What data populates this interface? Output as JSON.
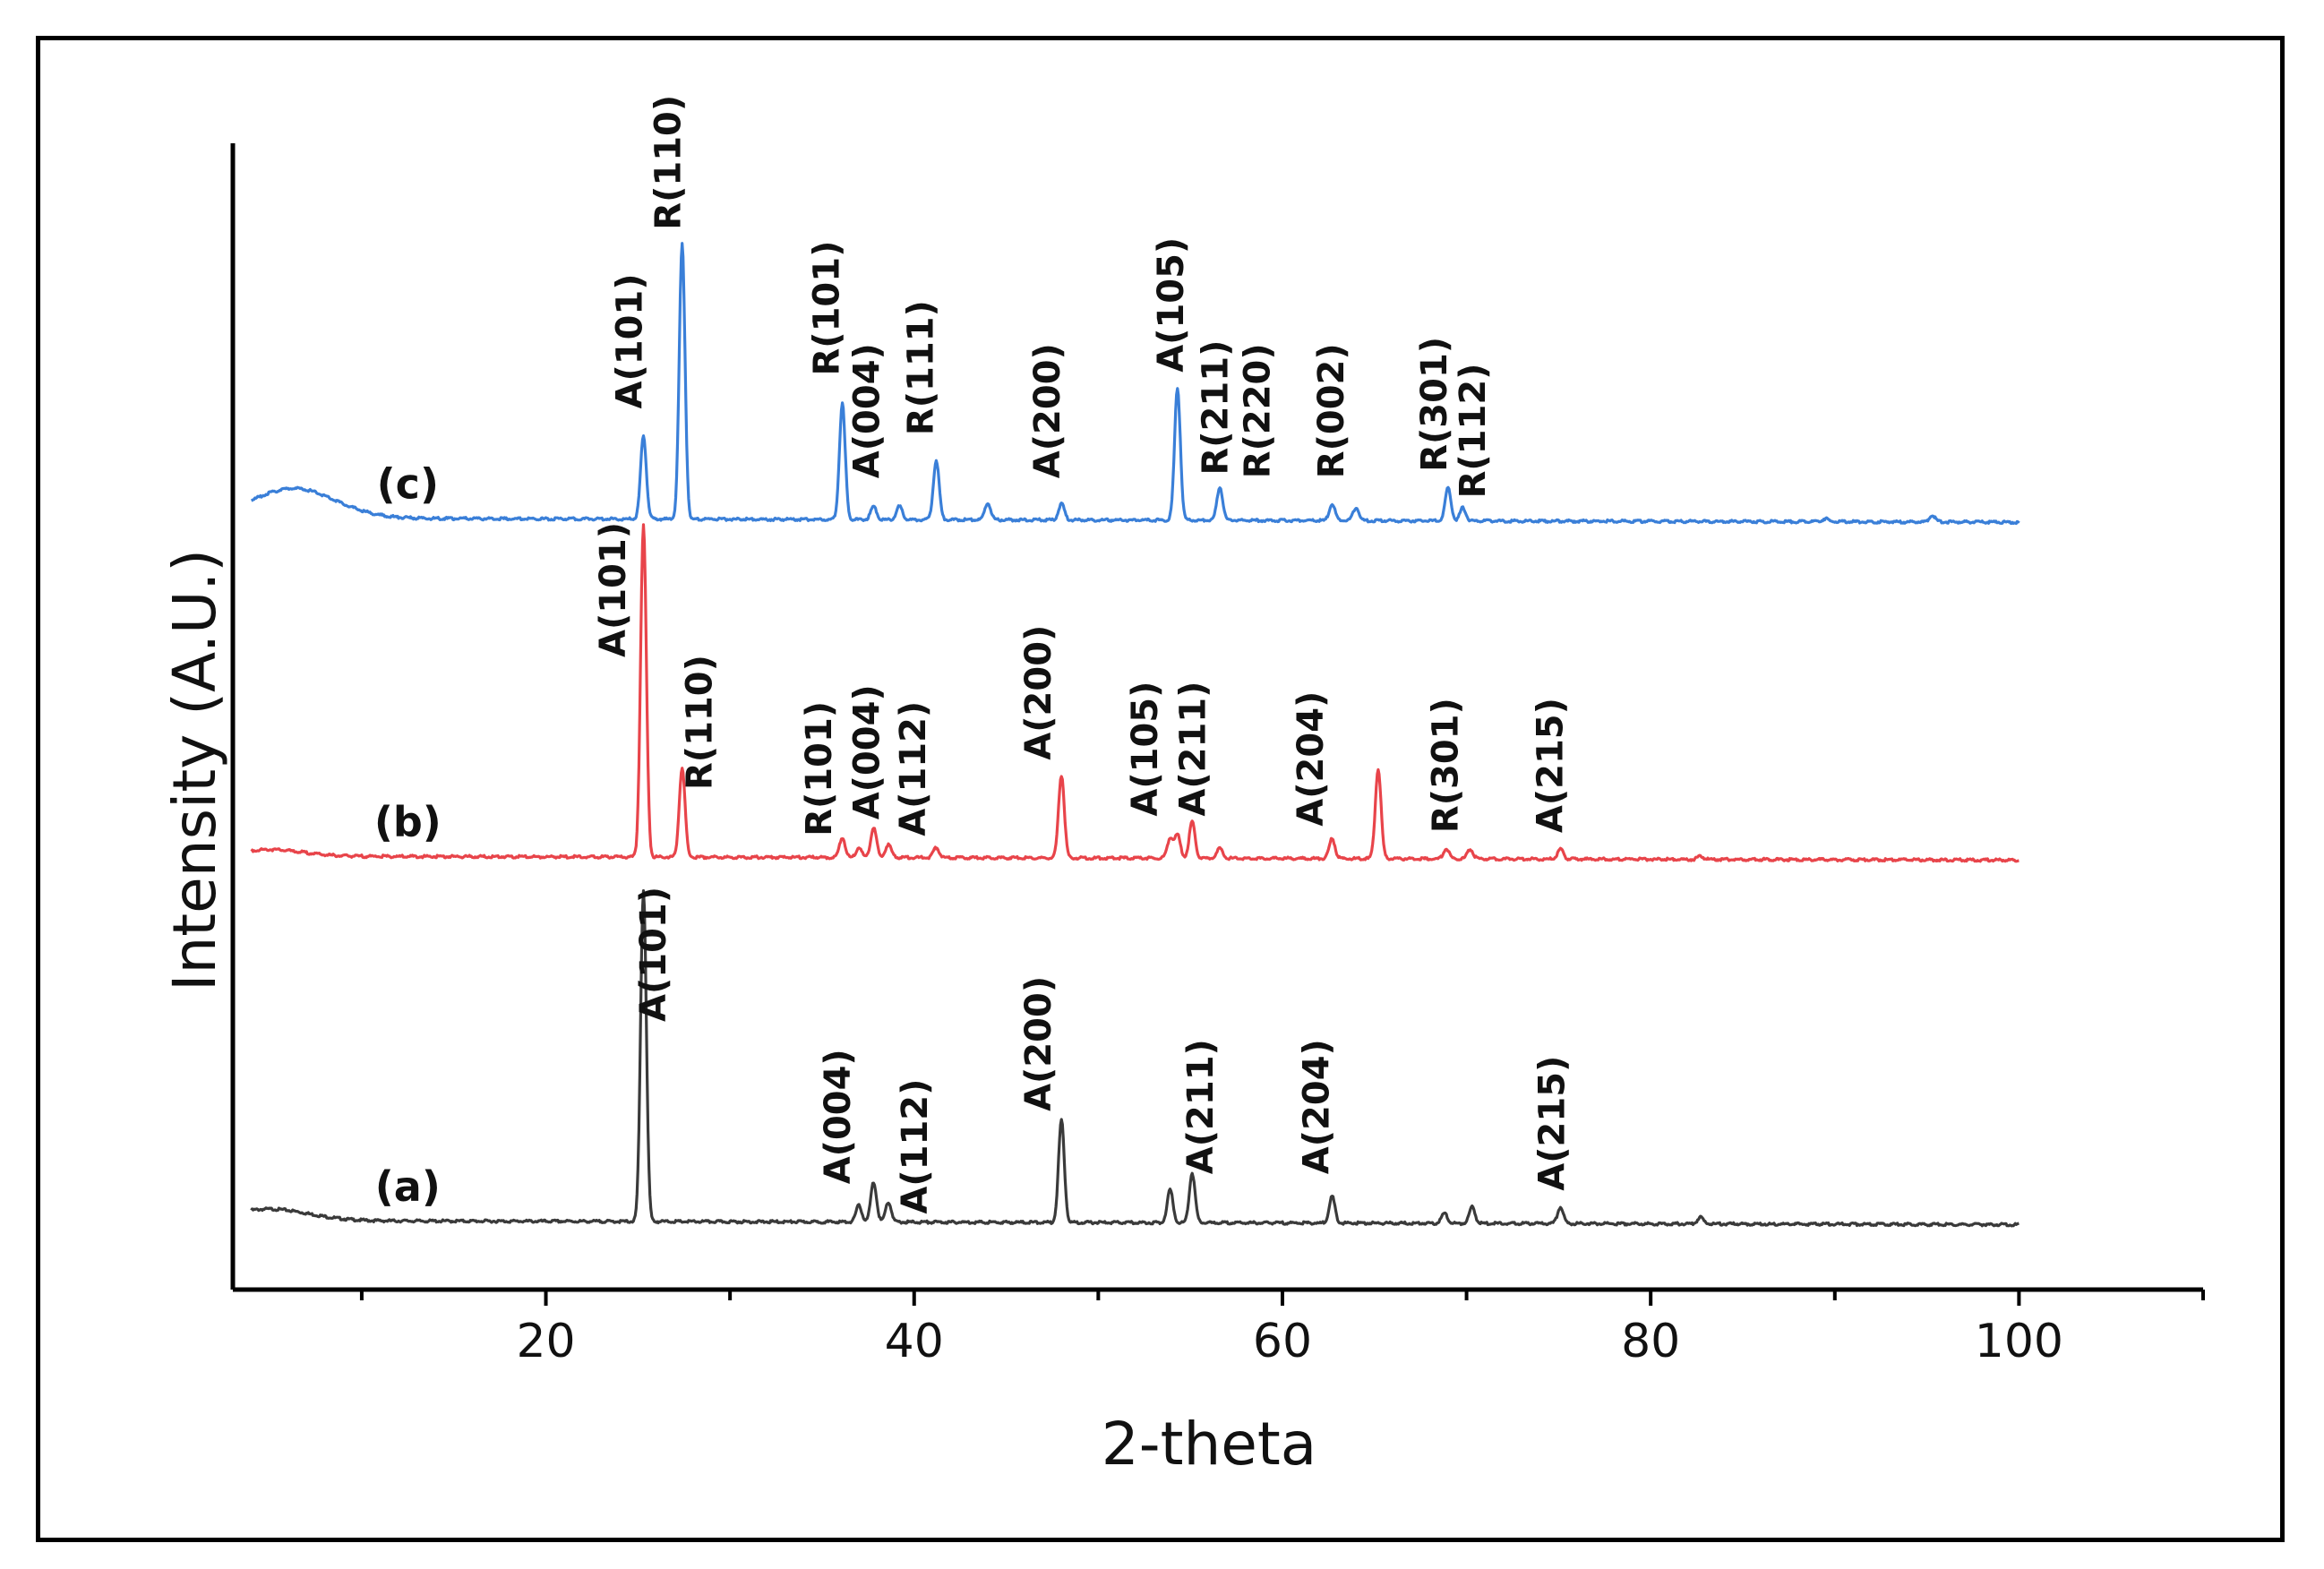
{
  "chart_data": {
    "type": "line",
    "title": "",
    "xlabel": "2-theta",
    "ylabel": "Intensity (A.U.)",
    "xlim": [
      3,
      110
    ],
    "x_ticks": [
      20,
      40,
      60,
      80,
      100
    ],
    "x_tick_labels": [
      "20",
      "40",
      "60",
      "80",
      "100"
    ],
    "y_ticks_shown": false,
    "grid": false,
    "series": [
      {
        "name": "(a)",
        "color": "#3a3a3a",
        "baseline": 0.0,
        "x_range": [
          4,
          100
        ],
        "hump": {
          "center": 5,
          "height": 0.035,
          "width": 3
        },
        "peaks": [
          {
            "x": 25.3,
            "h": 1.0
          },
          {
            "x": 37.0,
            "h": 0.05
          },
          {
            "x": 37.8,
            "h": 0.12
          },
          {
            "x": 38.6,
            "h": 0.06
          },
          {
            "x": 48.0,
            "h": 0.31
          },
          {
            "x": 53.9,
            "h": 0.1
          },
          {
            "x": 55.1,
            "h": 0.15
          },
          {
            "x": 62.7,
            "h": 0.08
          },
          {
            "x": 68.8,
            "h": 0.03
          },
          {
            "x": 70.3,
            "h": 0.05
          },
          {
            "x": 75.1,
            "h": 0.05
          },
          {
            "x": 82.7,
            "h": 0.02
          }
        ],
        "annotations": [
          {
            "text": "A(101)",
            "x": 26.5,
            "y": 0.6
          },
          {
            "text": "A(004)",
            "x": 36.5,
            "y": 0.11
          },
          {
            "text": "A(112)",
            "x": 40.7,
            "y": 0.02
          },
          {
            "text": "A(200)",
            "x": 47.4,
            "y": 0.33
          },
          {
            "text": "A(211)",
            "x": 56.2,
            "y": 0.14
          },
          {
            "text": "A(204)",
            "x": 62.5,
            "y": 0.14
          },
          {
            "text": "A(215)",
            "x": 75.3,
            "y": 0.09
          }
        ]
      },
      {
        "name": "(b)",
        "color": "#e8444a",
        "baseline": 1.1,
        "x_range": [
          4,
          100
        ],
        "hump": {
          "center": 5,
          "height": 0.02,
          "width": 2.5
        },
        "peaks": [
          {
            "x": 25.3,
            "h": 1.0
          },
          {
            "x": 27.4,
            "h": 0.27
          },
          {
            "x": 36.1,
            "h": 0.06
          },
          {
            "x": 37.0,
            "h": 0.03
          },
          {
            "x": 37.8,
            "h": 0.09
          },
          {
            "x": 38.6,
            "h": 0.04
          },
          {
            "x": 41.2,
            "h": 0.03
          },
          {
            "x": 48.0,
            "h": 0.25
          },
          {
            "x": 53.9,
            "h": 0.06
          },
          {
            "x": 54.3,
            "h": 0.07
          },
          {
            "x": 55.1,
            "h": 0.11
          },
          {
            "x": 56.6,
            "h": 0.03
          },
          {
            "x": 62.7,
            "h": 0.06
          },
          {
            "x": 65.2,
            "h": 0.27
          },
          {
            "x": 68.9,
            "h": 0.03
          },
          {
            "x": 70.2,
            "h": 0.03
          },
          {
            "x": 75.1,
            "h": 0.03
          },
          {
            "x": 82.7,
            "h": 0.01
          }
        ],
        "annotations": [
          {
            "text": "A(101)",
            "x": 24.3,
            "y": 0.6
          },
          {
            "text": "R(110)",
            "x": 29.0,
            "y": 0.2
          },
          {
            "text": "R(101)",
            "x": 35.5,
            "y": 0.06
          },
          {
            "text": "A(004)",
            "x": 38.1,
            "y": 0.11
          },
          {
            "text": "A(112)",
            "x": 40.6,
            "y": 0.06
          },
          {
            "text": "A(200)",
            "x": 47.4,
            "y": 0.29
          },
          {
            "text": "A(105)",
            "x": 53.2,
            "y": 0.12
          },
          {
            "text": "A(211)",
            "x": 55.8,
            "y": 0.12
          },
          {
            "text": "A(204)",
            "x": 62.2,
            "y": 0.09
          },
          {
            "text": "R(301)",
            "x": 69.5,
            "y": 0.07
          },
          {
            "text": "A(215)",
            "x": 75.2,
            "y": 0.07
          }
        ]
      },
      {
        "name": "(c)",
        "color": "#3a7fd8",
        "baseline": 2.12,
        "x_range": [
          4,
          100
        ],
        "hump": {
          "center": 6.3,
          "height": 0.09,
          "width": 3.2
        },
        "peaks": [
          {
            "x": 25.3,
            "h": 0.25
          },
          {
            "x": 27.4,
            "h": 0.83
          },
          {
            "x": 36.1,
            "h": 0.35
          },
          {
            "x": 37.8,
            "h": 0.04
          },
          {
            "x": 39.2,
            "h": 0.04
          },
          {
            "x": 41.2,
            "h": 0.18
          },
          {
            "x": 44.0,
            "h": 0.05
          },
          {
            "x": 48.0,
            "h": 0.05
          },
          {
            "x": 54.3,
            "h": 0.4
          },
          {
            "x": 56.6,
            "h": 0.1
          },
          {
            "x": 62.7,
            "h": 0.05
          },
          {
            "x": 64.0,
            "h": 0.04
          },
          {
            "x": 69.0,
            "h": 0.1
          },
          {
            "x": 69.8,
            "h": 0.04
          },
          {
            "x": 89.5,
            "h": 0.01
          },
          {
            "x": 95.3,
            "h": 0.02
          }
        ],
        "annotations": [
          {
            "text": "A(101)",
            "x": 25.2,
            "y": 0.33
          },
          {
            "text": "R(110)",
            "x": 27.3,
            "y": 0.87
          },
          {
            "text": "R(101)",
            "x": 35.9,
            "y": 0.43
          },
          {
            "text": "A(004)",
            "x": 38.1,
            "y": 0.12
          },
          {
            "text": "R(111)",
            "x": 41.0,
            "y": 0.25
          },
          {
            "text": "A(200)",
            "x": 47.9,
            "y": 0.12
          },
          {
            "text": "A(105)",
            "x": 54.6,
            "y": 0.44
          },
          {
            "text": "R(211)",
            "x": 57.0,
            "y": 0.13
          },
          {
            "text": "R(220)",
            "x": 59.3,
            "y": 0.12
          },
          {
            "text": "R(002)",
            "x": 63.3,
            "y": 0.12
          },
          {
            "text": "R(301)",
            "x": 68.9,
            "y": 0.14
          },
          {
            "text": "R(112)",
            "x": 71.0,
            "y": 0.06
          }
        ]
      }
    ]
  }
}
